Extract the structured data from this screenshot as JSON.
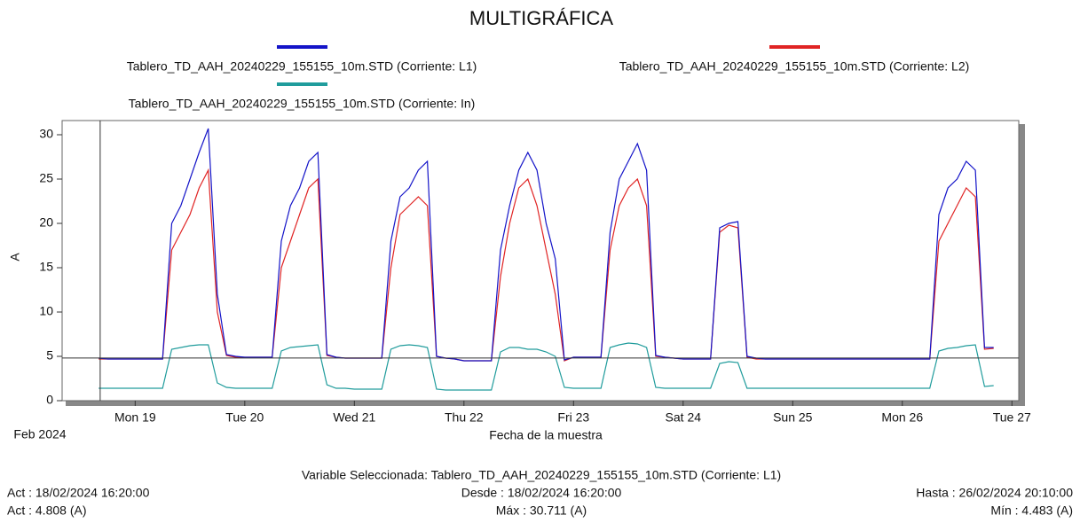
{
  "chart_data": {
    "type": "line",
    "title": "MULTIGRÁFICA",
    "xlabel": "Fecha de la muestra",
    "ylabel": "A",
    "x_sublabel": "Feb 2024",
    "x": [
      "2024-02-18 16:00",
      "2024-02-18 18:00",
      "2024-02-18 20:00",
      "2024-02-18 22:00",
      "2024-02-19 00:00",
      "2024-02-19 02:00",
      "2024-02-19 04:00",
      "2024-02-19 06:00",
      "2024-02-19 08:00",
      "2024-02-19 10:00",
      "2024-02-19 12:00",
      "2024-02-19 14:00",
      "2024-02-19 16:00",
      "2024-02-19 18:00",
      "2024-02-19 20:00",
      "2024-02-19 22:00",
      "2024-02-20 00:00",
      "2024-02-20 02:00",
      "2024-02-20 04:00",
      "2024-02-20 06:00",
      "2024-02-20 08:00",
      "2024-02-20 10:00",
      "2024-02-20 12:00",
      "2024-02-20 14:00",
      "2024-02-20 16:00",
      "2024-02-20 18:00",
      "2024-02-20 20:00",
      "2024-02-20 22:00",
      "2024-02-21 00:00",
      "2024-02-21 02:00",
      "2024-02-21 04:00",
      "2024-02-21 06:00",
      "2024-02-21 08:00",
      "2024-02-21 10:00",
      "2024-02-21 12:00",
      "2024-02-21 14:00",
      "2024-02-21 16:00",
      "2024-02-21 18:00",
      "2024-02-21 20:00",
      "2024-02-21 22:00",
      "2024-02-22 00:00",
      "2024-02-22 02:00",
      "2024-02-22 04:00",
      "2024-02-22 06:00",
      "2024-02-22 08:00",
      "2024-02-22 10:00",
      "2024-02-22 12:00",
      "2024-02-22 14:00",
      "2024-02-22 16:00",
      "2024-02-22 18:00",
      "2024-02-22 20:00",
      "2024-02-22 22:00",
      "2024-02-23 00:00",
      "2024-02-23 02:00",
      "2024-02-23 04:00",
      "2024-02-23 06:00",
      "2024-02-23 08:00",
      "2024-02-23 10:00",
      "2024-02-23 12:00",
      "2024-02-23 14:00",
      "2024-02-23 16:00",
      "2024-02-23 18:00",
      "2024-02-23 20:00",
      "2024-02-23 22:00",
      "2024-02-24 00:00",
      "2024-02-24 02:00",
      "2024-02-24 04:00",
      "2024-02-24 06:00",
      "2024-02-24 08:00",
      "2024-02-24 10:00",
      "2024-02-24 12:00",
      "2024-02-24 14:00",
      "2024-02-24 16:00",
      "2024-02-24 18:00",
      "2024-02-24 20:00",
      "2024-02-24 22:00",
      "2024-02-25 00:00",
      "2024-02-25 02:00",
      "2024-02-25 04:00",
      "2024-02-25 06:00",
      "2024-02-25 08:00",
      "2024-02-25 10:00",
      "2024-02-25 12:00",
      "2024-02-25 14:00",
      "2024-02-25 16:00",
      "2024-02-25 18:00",
      "2024-02-25 20:00",
      "2024-02-25 22:00",
      "2024-02-26 00:00",
      "2024-02-26 02:00",
      "2024-02-26 04:00",
      "2024-02-26 06:00",
      "2024-02-26 08:00",
      "2024-02-26 10:00",
      "2024-02-26 12:00",
      "2024-02-26 14:00",
      "2024-02-26 16:00",
      "2024-02-26 18:00",
      "2024-02-26 20:00"
    ],
    "series": [
      {
        "name": "Tablero_TD_AAH_20240229_155155_10m.STD (Corriente: L1)",
        "color": "#1414c8",
        "values": [
          4.8,
          4.7,
          4.7,
          4.7,
          4.7,
          4.7,
          4.7,
          4.7,
          20,
          22,
          25,
          28,
          30.7,
          12,
          5.2,
          5.0,
          4.9,
          4.9,
          4.9,
          4.9,
          18,
          22,
          24,
          27,
          28,
          5.2,
          4.9,
          4.8,
          4.8,
          4.8,
          4.8,
          4.8,
          18,
          23,
          24,
          26,
          27,
          5.0,
          4.8,
          4.7,
          4.5,
          4.5,
          4.5,
          4.5,
          17,
          22,
          26,
          28,
          26,
          20,
          16,
          4.6,
          4.9,
          4.9,
          4.9,
          4.9,
          19,
          25,
          27,
          29,
          26,
          5.1,
          4.9,
          4.8,
          4.7,
          4.7,
          4.7,
          4.7,
          19.5,
          20,
          20.2,
          5.0,
          4.8,
          4.7,
          4.7,
          4.7,
          4.7,
          4.7,
          4.7,
          4.7,
          4.7,
          4.7,
          4.7,
          4.7,
          4.7,
          4.7,
          4.7,
          4.7,
          4.7,
          4.7,
          4.7,
          4.7,
          21,
          24,
          25,
          27,
          26,
          6.0,
          6.0
        ]
      },
      {
        "name": "Tablero_TD_AAH_20240229_155155_10m.STD (Corriente: L2)",
        "color": "#e02424",
        "values": [
          4.7,
          4.7,
          4.7,
          4.7,
          4.7,
          4.7,
          4.7,
          4.7,
          17,
          19,
          21,
          24,
          26,
          10,
          5.1,
          4.9,
          4.9,
          4.9,
          4.9,
          4.9,
          15,
          18,
          21,
          24,
          25,
          5.1,
          4.9,
          4.8,
          4.8,
          4.8,
          4.8,
          4.8,
          15,
          21,
          22,
          23,
          22,
          5.0,
          4.8,
          4.7,
          4.5,
          4.5,
          4.5,
          4.5,
          14,
          20,
          24,
          25,
          22,
          17,
          12,
          4.5,
          4.9,
          4.9,
          4.9,
          4.9,
          17,
          22,
          24,
          25,
          22,
          5.0,
          4.9,
          4.8,
          4.7,
          4.7,
          4.7,
          4.7,
          19,
          19.8,
          19.5,
          4.9,
          4.7,
          4.7,
          4.7,
          4.7,
          4.7,
          4.7,
          4.7,
          4.7,
          4.7,
          4.7,
          4.7,
          4.7,
          4.7,
          4.7,
          4.7,
          4.7,
          4.7,
          4.7,
          4.7,
          4.7,
          18,
          20,
          22,
          24,
          23,
          5.8,
          5.9
        ]
      },
      {
        "name": "Tablero_TD_AAH_20240229_155155_10m.STD (Corriente: In)",
        "color": "#209c9c",
        "values": [
          1.4,
          1.4,
          1.4,
          1.4,
          1.4,
          1.4,
          1.4,
          1.4,
          5.8,
          6.0,
          6.2,
          6.3,
          6.3,
          2.0,
          1.5,
          1.4,
          1.4,
          1.4,
          1.4,
          1.4,
          5.6,
          6.0,
          6.1,
          6.2,
          6.3,
          1.8,
          1.4,
          1.4,
          1.3,
          1.3,
          1.3,
          1.3,
          5.8,
          6.2,
          6.3,
          6.2,
          6.0,
          1.3,
          1.2,
          1.2,
          1.2,
          1.2,
          1.2,
          1.2,
          5.5,
          6.0,
          6.0,
          5.8,
          5.8,
          5.5,
          5.0,
          1.5,
          1.4,
          1.4,
          1.4,
          1.4,
          6.0,
          6.3,
          6.5,
          6.4,
          6.0,
          1.5,
          1.4,
          1.4,
          1.4,
          1.4,
          1.4,
          1.4,
          4.2,
          4.4,
          4.3,
          1.4,
          1.4,
          1.4,
          1.4,
          1.4,
          1.4,
          1.4,
          1.4,
          1.4,
          1.4,
          1.4,
          1.4,
          1.4,
          1.4,
          1.4,
          1.4,
          1.4,
          1.4,
          1.4,
          1.4,
          1.4,
          5.6,
          5.9,
          6.0,
          6.2,
          6.3,
          1.6,
          1.7
        ]
      }
    ],
    "xlim": [
      "2024-02-18 08:00",
      "2024-02-27 01:30"
    ],
    "xticks": [
      {
        "value": "2024-02-19 00:00",
        "label": "Mon 19"
      },
      {
        "value": "2024-02-20 00:00",
        "label": "Tue 20"
      },
      {
        "value": "2024-02-21 00:00",
        "label": "Wed 21"
      },
      {
        "value": "2024-02-22 00:00",
        "label": "Thu 22"
      },
      {
        "value": "2024-02-23 00:00",
        "label": "Fri 23"
      },
      {
        "value": "2024-02-24 00:00",
        "label": "Sat 24"
      },
      {
        "value": "2024-02-25 00:00",
        "label": "Sun 25"
      },
      {
        "value": "2024-02-26 00:00",
        "label": "Mon 26"
      },
      {
        "value": "2024-02-27 00:00",
        "label": "Tue 27"
      }
    ],
    "ylim": [
      0,
      31.6
    ],
    "yticks": [
      0,
      5,
      10,
      15,
      20,
      25,
      30
    ],
    "cursor": {
      "x": "2024-02-18 16:20",
      "y": 4.808
    },
    "footer": {
      "selected": "Variable Seleccionada: Tablero_TD_AAH_20240229_155155_10m.STD (Corriente: L1)",
      "act_time": "Act : 18/02/2024 16:20:00",
      "from": "Desde : 18/02/2024 16:20:00",
      "to": "Hasta : 26/02/2024 20:10:00",
      "act_value": "Act : 4.808 (A)",
      "max": "Máx : 30.711 (A)",
      "min": "Mín : 4.483 (A)"
    }
  }
}
